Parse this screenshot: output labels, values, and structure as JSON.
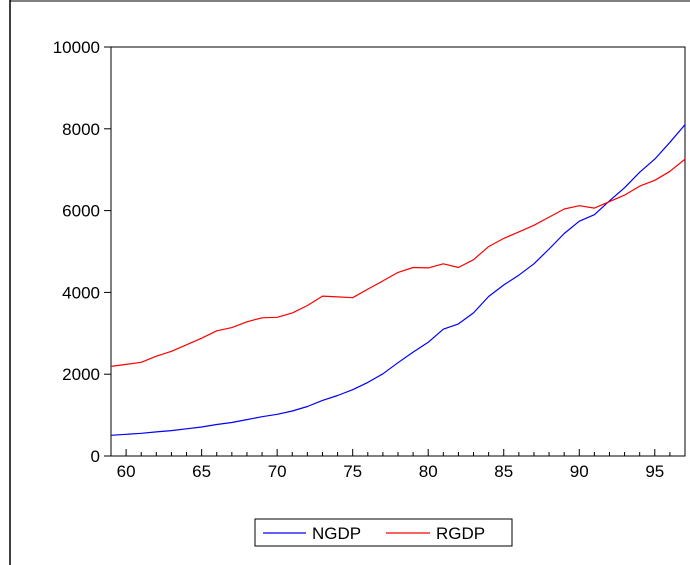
{
  "chart_data": {
    "type": "line",
    "title": "",
    "xlabel": "",
    "ylabel": "",
    "x": [
      59,
      60,
      61,
      62,
      63,
      64,
      65,
      66,
      67,
      68,
      69,
      70,
      71,
      72,
      73,
      74,
      75,
      76,
      77,
      78,
      79,
      80,
      81,
      82,
      83,
      84,
      85,
      86,
      87,
      88,
      89,
      90,
      91,
      92,
      93,
      94,
      95,
      96,
      97
    ],
    "xlim": [
      59,
      97
    ],
    "ylim": [
      0,
      10000
    ],
    "x_ticks": [
      60,
      65,
      70,
      75,
      80,
      85,
      90,
      95
    ],
    "y_ticks": [
      0,
      2000,
      4000,
      6000,
      8000,
      10000
    ],
    "grid": false,
    "legend_position": "bottom",
    "series": [
      {
        "name": "NGDP",
        "color": "#0000ff",
        "values": [
          505,
          530,
          555,
          590,
          620,
          665,
          710,
          770,
          820,
          890,
          960,
          1020,
          1100,
          1210,
          1360,
          1480,
          1620,
          1800,
          2010,
          2280,
          2540,
          2780,
          3100,
          3230,
          3500,
          3900,
          4180,
          4420,
          4700,
          5060,
          5440,
          5740,
          5900,
          6240,
          6560,
          6940,
          7260,
          7670,
          8100
        ]
      },
      {
        "name": "RGDP",
        "color": "#ff0000",
        "values": [
          2190,
          2240,
          2290,
          2440,
          2560,
          2720,
          2880,
          3060,
          3140,
          3280,
          3380,
          3390,
          3500,
          3680,
          3910,
          3890,
          3870,
          4080,
          4280,
          4490,
          4610,
          4600,
          4700,
          4610,
          4800,
          5120,
          5320,
          5480,
          5640,
          5840,
          6040,
          6120,
          6060,
          6220,
          6380,
          6600,
          6740,
          6960,
          7260
        ]
      }
    ]
  }
}
